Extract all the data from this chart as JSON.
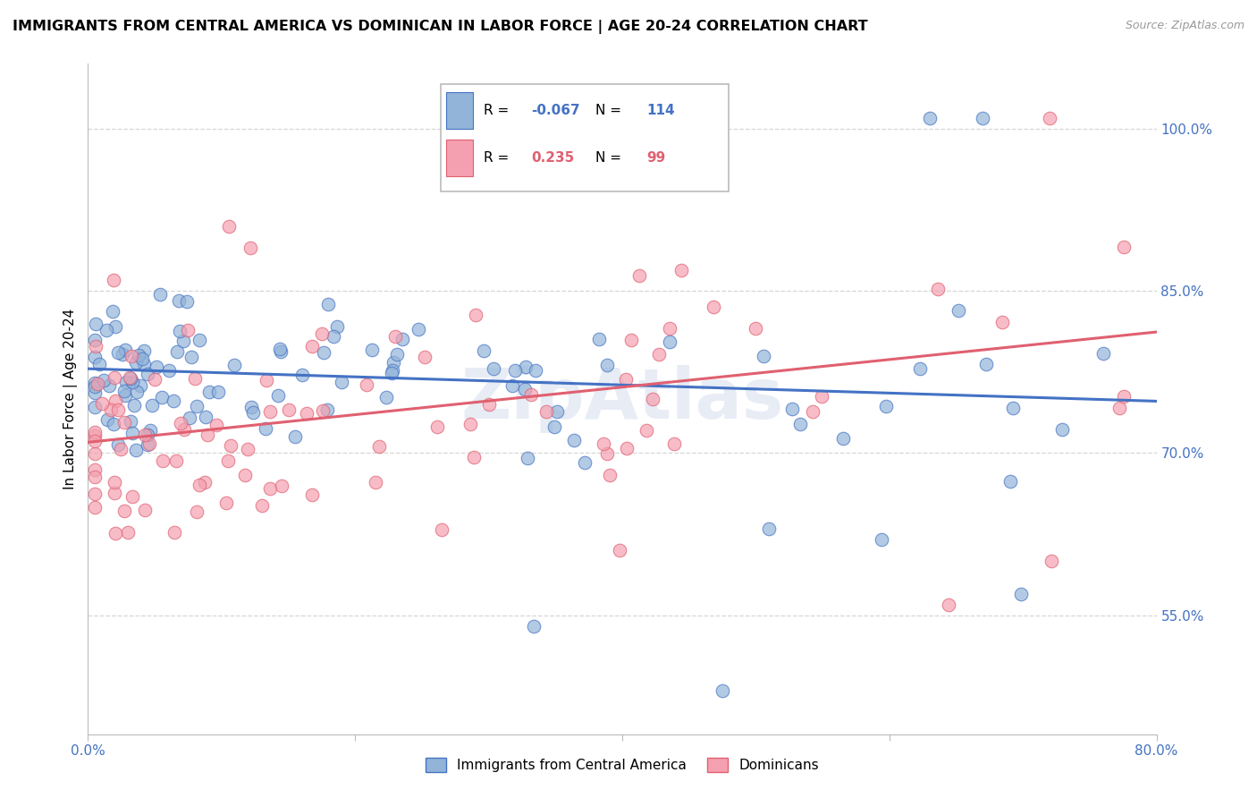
{
  "title": "IMMIGRANTS FROM CENTRAL AMERICA VS DOMINICAN IN LABOR FORCE | AGE 20-24 CORRELATION CHART",
  "source": "Source: ZipAtlas.com",
  "ylabel_left": "In Labor Force | Age 20-24",
  "x_min": 0.0,
  "x_max": 0.8,
  "y_min": 0.44,
  "y_max": 1.06,
  "y_ticks_right": [
    0.55,
    0.7,
    0.85,
    1.0
  ],
  "y_tick_labels_right": [
    "55.0%",
    "70.0%",
    "85.0%",
    "100.0%"
  ],
  "blue_color": "#92B4D8",
  "pink_color": "#F4A0B0",
  "blue_line_color": "#4472C4",
  "pink_line_color": "#E06070",
  "grid_color": "#CCCCCC",
  "background_color": "#FFFFFF",
  "legend_r_blue": "-0.067",
  "legend_n_blue": "114",
  "legend_r_pink": "0.235",
  "legend_n_pink": "99",
  "legend_label_blue": "Immigrants from Central America",
  "legend_label_pink": "Dominicans",
  "blue_trend_y_start": 0.778,
  "blue_trend_y_end": 0.748,
  "pink_trend_y_start": 0.71,
  "pink_trend_y_end": 0.812
}
